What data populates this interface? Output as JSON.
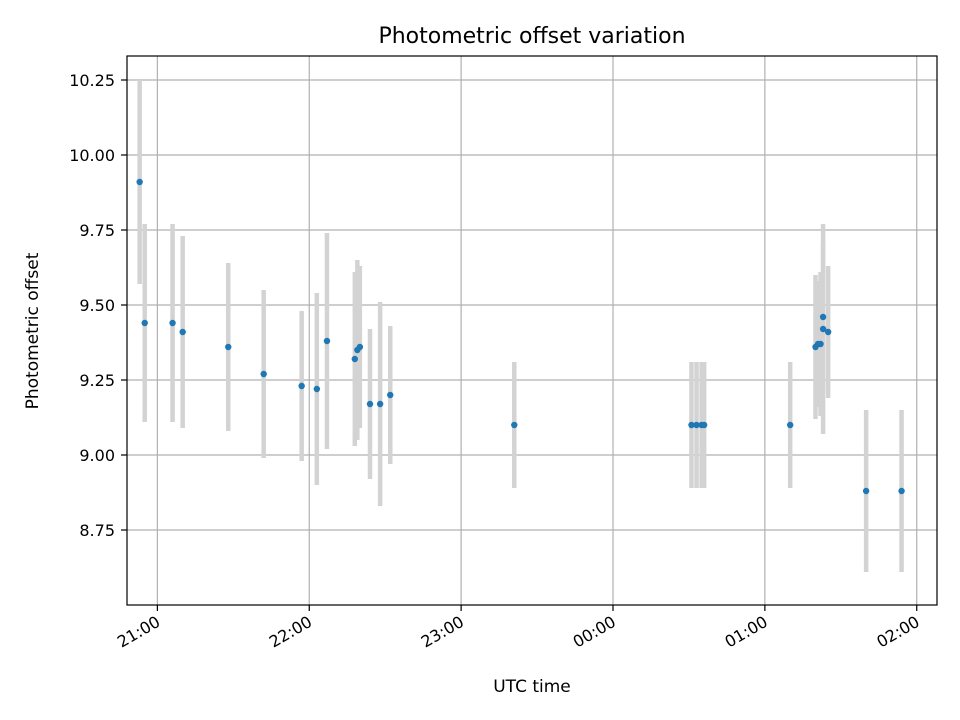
{
  "chart_data": {
    "type": "scatter",
    "title": "Photometric offset variation",
    "xlabel": "UTC time",
    "ylabel": "Photometric offset",
    "xlim": [
      "20:48",
      "02:08"
    ],
    "ylim": [
      8.5,
      10.33
    ],
    "x_ticks": [
      "21:00",
      "22:00",
      "23:00",
      "00:00",
      "01:00",
      "02:00"
    ],
    "y_ticks": [
      8.75,
      9.0,
      9.25,
      9.5,
      9.75,
      10.0,
      10.25
    ],
    "grid": true,
    "marker_color": "#1f77b4",
    "errorbar_color": "#d3d3d3",
    "points": [
      {
        "time": "20:53",
        "y": 9.91,
        "err": 0.34
      },
      {
        "time": "20:55",
        "y": 9.44,
        "err": 0.33
      },
      {
        "time": "21:06",
        "y": 9.44,
        "err": 0.33
      },
      {
        "time": "21:10",
        "y": 9.41,
        "err": 0.32
      },
      {
        "time": "21:28",
        "y": 9.36,
        "err": 0.28
      },
      {
        "time": "21:42",
        "y": 9.27,
        "err": 0.28
      },
      {
        "time": "21:57",
        "y": 9.23,
        "err": 0.25
      },
      {
        "time": "22:03",
        "y": 9.22,
        "err": 0.32
      },
      {
        "time": "22:07",
        "y": 9.38,
        "err": 0.36
      },
      {
        "time": "22:18",
        "y": 9.32,
        "err": 0.29
      },
      {
        "time": "22:19",
        "y": 9.35,
        "err": 0.3
      },
      {
        "time": "22:20",
        "y": 9.36,
        "err": 0.27
      },
      {
        "time": "22:24",
        "y": 9.17,
        "err": 0.25
      },
      {
        "time": "22:28",
        "y": 9.17,
        "err": 0.34
      },
      {
        "time": "22:32",
        "y": 9.2,
        "err": 0.23
      },
      {
        "time": "23:21",
        "y": 9.1,
        "err": 0.21
      },
      {
        "time": "00:31",
        "y": 9.1,
        "err": 0.21
      },
      {
        "time": "00:33",
        "y": 9.1,
        "err": 0.21
      },
      {
        "time": "00:35",
        "y": 9.1,
        "err": 0.21
      },
      {
        "time": "00:36",
        "y": 9.1,
        "err": 0.21
      },
      {
        "time": "01:10",
        "y": 9.1,
        "err": 0.21
      },
      {
        "time": "01:20",
        "y": 9.36,
        "err": 0.24
      },
      {
        "time": "01:21",
        "y": 9.37,
        "err": 0.21
      },
      {
        "time": "01:22",
        "y": 9.37,
        "err": 0.24
      },
      {
        "time": "01:23",
        "y": 9.46,
        "err": 0.25
      },
      {
        "time": "01:23",
        "y": 9.42,
        "err": 0.35
      },
      {
        "time": "01:25",
        "y": 9.41,
        "err": 0.22
      },
      {
        "time": "01:40",
        "y": 8.88,
        "err": 0.27
      },
      {
        "time": "01:54",
        "y": 8.88,
        "err": 0.27
      }
    ]
  }
}
